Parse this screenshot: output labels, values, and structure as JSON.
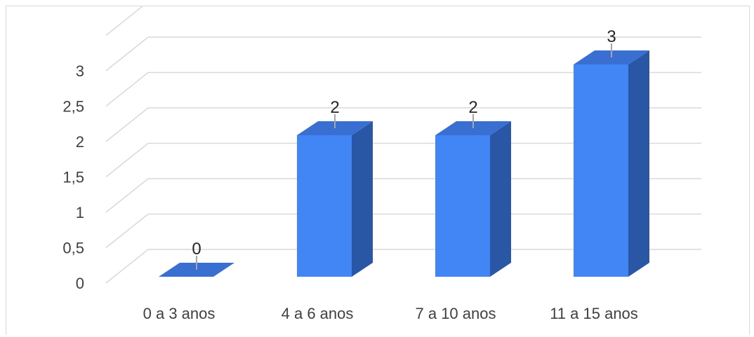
{
  "chart_data": {
    "type": "bar",
    "style": "3d-column",
    "categories": [
      "0 a 3 anos",
      "4 a 6 anos",
      "7 a 10 anos",
      "11 a 15 anos"
    ],
    "values": [
      0,
      2,
      2,
      3
    ],
    "data_labels": [
      "0",
      "2",
      "2",
      "3"
    ],
    "y_ticks": [
      0,
      0.5,
      1,
      1.5,
      2,
      2.5,
      3
    ],
    "y_tick_labels": [
      "0",
      "0,5",
      "1",
      "1,5",
      "2",
      "2,5",
      "3"
    ],
    "ylim": [
      0,
      3
    ],
    "title": "",
    "xlabel": "",
    "ylabel": "",
    "grid": true,
    "legend": "none",
    "colors": {
      "bar_front": "#4285f4",
      "bar_side": "#2a56a6",
      "bar_top": "#3a6fd2",
      "grid": "#d9d9d9",
      "leader_line": "#a6a6a6",
      "tick_text": "#404040",
      "label_text": "#262626"
    }
  }
}
